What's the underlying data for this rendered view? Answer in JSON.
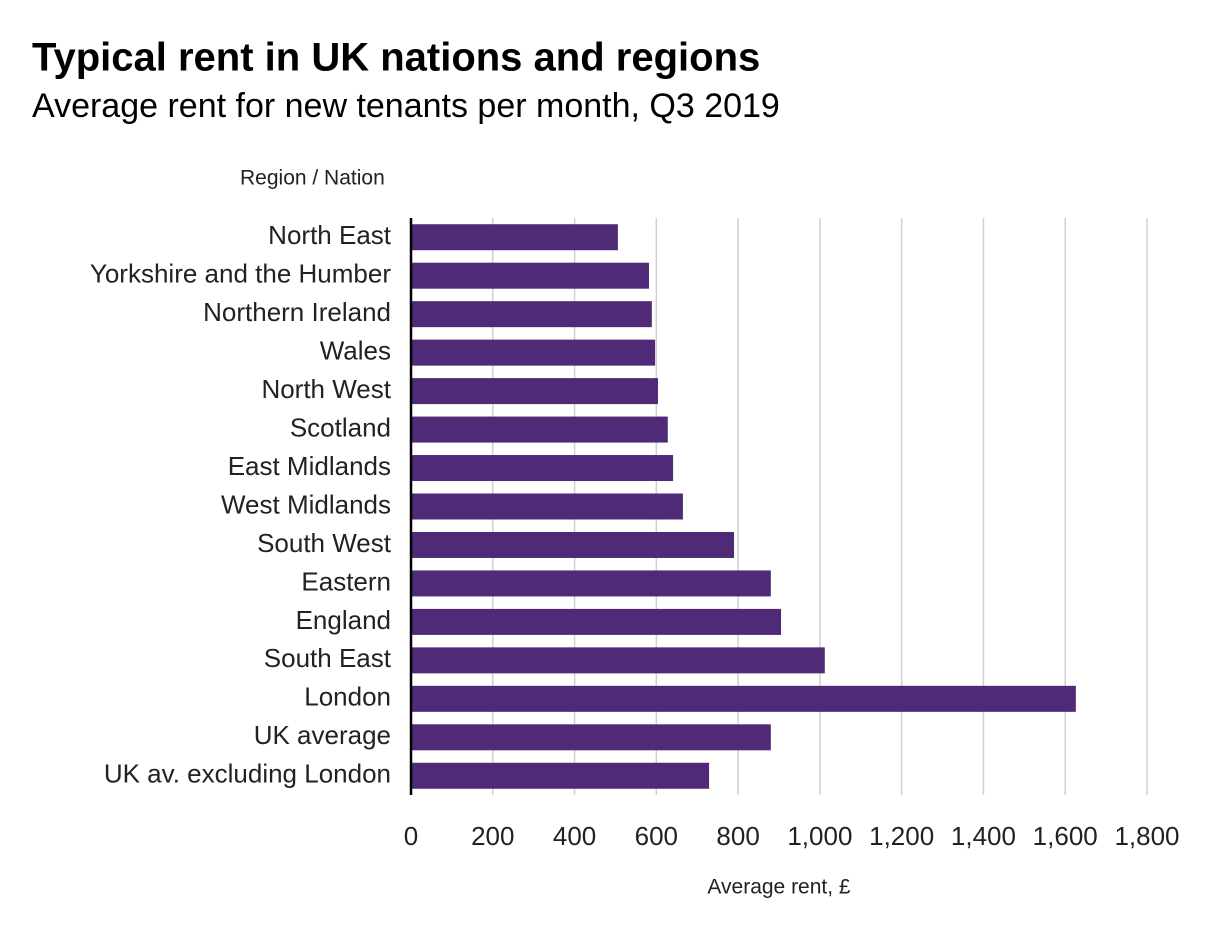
{
  "chart_data": {
    "type": "hbar",
    "title": "Typical rent in UK nations and regions",
    "subtitle": "Average rent for new tenants per month, Q3 2019",
    "y_label": "Region / Nation",
    "x_label": "Average rent, £",
    "categories": [
      "North East",
      "Yorkshire and the Humber",
      "Northern Ireland",
      "Wales",
      "North West",
      "Scotland",
      "East Midlands",
      "West Midlands",
      "South West",
      "Eastern",
      "England",
      "South East",
      "London",
      "UK average",
      "UK av. excluding London"
    ],
    "values": [
      506,
      582,
      589,
      597,
      604,
      628,
      641,
      665,
      790,
      880,
      905,
      1012,
      1626,
      880,
      729
    ],
    "color": "#4e2a77",
    "xlim": [
      0,
      1800
    ],
    "xticks": [
      0,
      200,
      400,
      600,
      800,
      {
        "value": 1000,
        "label": "1,000"
      },
      {
        "value": 1200,
        "label": "1,200"
      },
      {
        "value": 1400,
        "label": "1,400"
      },
      {
        "value": 1600,
        "label": "1,600"
      },
      {
        "value": 1800,
        "label": "1,800"
      }
    ],
    "grid": true
  }
}
